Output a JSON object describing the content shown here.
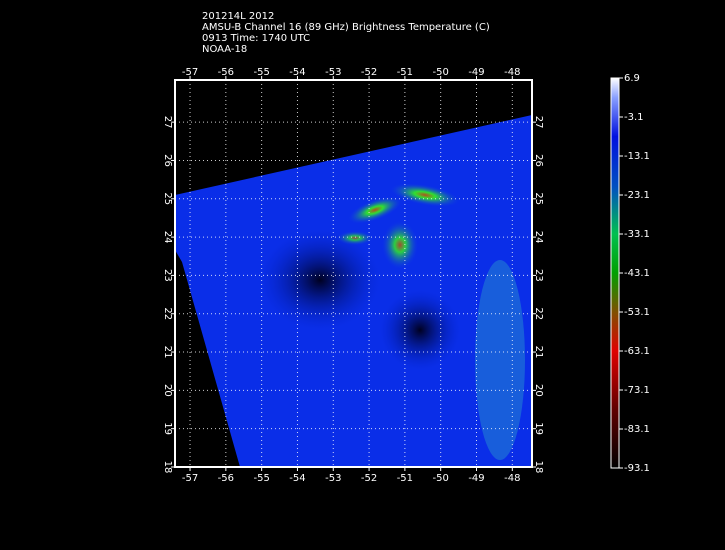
{
  "header": {
    "lines": [
      "201214L 2012",
      "AMSU-B Channel 16 (89 GHz) Brightness Temperature (C)",
      "0913 Time: 1740 UTC",
      "NOAA-18"
    ]
  },
  "map": {
    "lonlim": [
      -57.42,
      -47.45
    ],
    "lon_ticks": [
      -57,
      -56,
      -55,
      -54,
      -53,
      -52,
      -51,
      -50,
      -49,
      -48
    ],
    "latlim": [
      18,
      28.1
    ],
    "lat_ticks": [
      18,
      19,
      20,
      21,
      22,
      23,
      24,
      25,
      26,
      27
    ],
    "grid": true
  },
  "colorbar": {
    "lim": [
      -93.1,
      6.9
    ],
    "ticks": [
      6.9,
      -3.1,
      -13.1,
      -23.1,
      -33.1,
      -43.1,
      -53.1,
      -63.1,
      -73.1,
      -83.1,
      -93.1
    ]
  }
}
